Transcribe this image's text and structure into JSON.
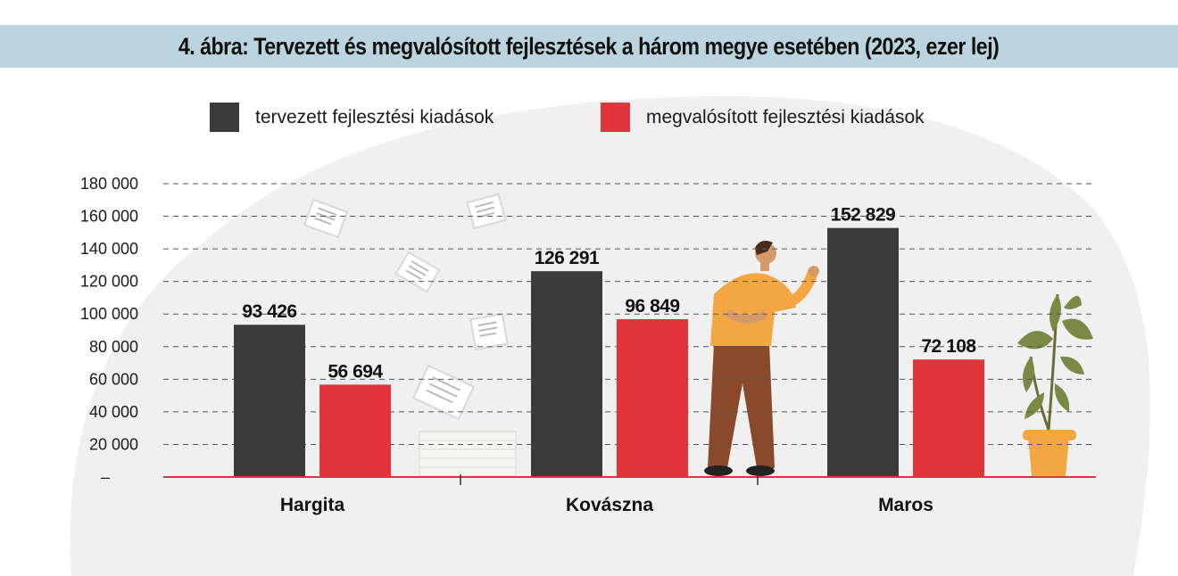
{
  "title": "4. ábra: Tervezett és megvalósított fejlesztések a három megye esetében (2023, ezer lej)",
  "chart_data": {
    "type": "bar",
    "title": "4. ábra: Tervezett és megvalósított fejlesztések a három megye esetében (2023, ezer lej)",
    "categories": [
      "Hargita",
      "Kovászna",
      "Maros"
    ],
    "series": [
      {
        "name": "tervezett fejlesztési kiadások",
        "color": "#3b3b3b",
        "values": [
          93426,
          126291,
          152829
        ],
        "labels": [
          "93 426",
          "126 291",
          "152 829"
        ]
      },
      {
        "name": "megvalósított fejlesztési kiadások",
        "color": "#e0353b",
        "values": [
          56694,
          96849,
          72108
        ],
        "labels": [
          "56 694",
          "96 849",
          "72 108"
        ]
      }
    ],
    "yticks": [
      "–",
      "20 000",
      "40 000",
      "60 000",
      "80 000",
      "100 000",
      "120 000",
      "140 000",
      "160 000",
      "180 000"
    ],
    "ytick_values": [
      0,
      20000,
      40000,
      60000,
      80000,
      100000,
      120000,
      140000,
      160000,
      180000
    ],
    "ylim": [
      0,
      180000
    ],
    "grid": true,
    "legend": "top",
    "xlabel": "",
    "ylabel": ""
  },
  "colors": {
    "title_band": "#bcd4de",
    "axis": "#e0353b",
    "grid": "#555555",
    "blob": "#f0f0f0"
  }
}
